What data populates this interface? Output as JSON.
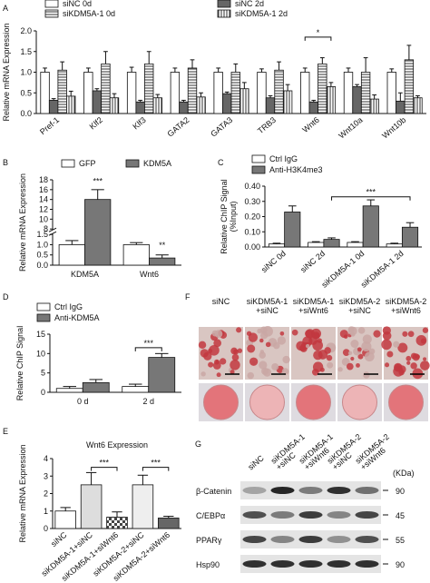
{
  "chart_data": [
    {
      "type": "bar",
      "ylabel": "Relative mRNA Expression",
      "legend": "top",
      "categories": [
        "Pref-1",
        "Klf2",
        "Klf3",
        "GATA2",
        "GATA3",
        "TRB3",
        "Wnt6",
        "Wnt10a",
        "Wnt10b"
      ],
      "series": [
        {
          "name": "siNC 0d",
          "color": "#ffffff",
          "values": [
            1.0,
            1.0,
            1.0,
            1.0,
            1.0,
            1.0,
            1.0,
            1.0,
            1.0
          ],
          "errors": [
            0.1,
            0.1,
            0.12,
            0.1,
            0.1,
            0.08,
            0.1,
            0.1,
            0.08
          ]
        },
        {
          "name": "siNC 2d",
          "color": "#666666",
          "values": [
            0.32,
            0.55,
            0.28,
            0.28,
            0.48,
            0.38,
            0.28,
            0.65,
            0.3
          ],
          "errors": [
            0.04,
            0.05,
            0.04,
            0.04,
            0.04,
            0.05,
            0.04,
            0.05,
            0.2
          ]
        },
        {
          "name": "siKDM5A-1 0d",
          "color": "#ffffff",
          "hatch": "horizontal",
          "values": [
            1.05,
            1.2,
            1.2,
            1.1,
            1.0,
            1.05,
            1.2,
            1.0,
            1.3
          ],
          "errors": [
            0.2,
            0.3,
            0.3,
            0.2,
            0.2,
            0.2,
            0.15,
            0.35,
            0.35
          ]
        },
        {
          "name": "siKDM5A-1 2d",
          "color": "#ffffff",
          "hatch": "vertical",
          "values": [
            0.42,
            0.38,
            0.38,
            0.4,
            0.6,
            0.55,
            0.65,
            0.35,
            0.38
          ],
          "errors": [
            0.12,
            0.1,
            0.08,
            0.1,
            0.15,
            0.15,
            0.1,
            0.1,
            0.05
          ]
        }
      ],
      "ylim": [
        0,
        2.0
      ],
      "yticks": [
        {
          "value": 0,
          "label": "0.0"
        },
        0.5,
        {
          "value": 1,
          "label": "1.0"
        },
        1.5,
        {
          "value": 2,
          "label": "2.0"
        }
      ],
      "xtick_rotation": 40,
      "annotations": [
        "*"
      ]
    },
    {
      "type": "bar",
      "ylabel": "Relative mRNA Expression",
      "legend": "top",
      "categories": [
        "KDM5A",
        "Wnt6"
      ],
      "series": [
        {
          "name": "GFP",
          "color": "#ffffff",
          "values": [
            1.0,
            1.0
          ],
          "errors": [
            0.2,
            0.1
          ]
        },
        {
          "name": "KDM5A",
          "color": "#777777",
          "values": [
            14,
            0.35
          ],
          "errors": [
            2,
            0.15
          ]
        }
      ],
      "ylim": [
        0,
        18
      ],
      "ybreak": [
        1.5,
        8
      ],
      "yticks": [
        {
          "value": 0,
          "label": "0.0"
        },
        0.5,
        {
          "value": 1,
          "label": "1.0"
        },
        1.5,
        8,
        10,
        12,
        14,
        16,
        18
      ],
      "xtick_rotation": 0,
      "annotations": [
        "***",
        "**"
      ]
    },
    {
      "type": "bar",
      "ylabel": [
        "Relative ChIP Signal",
        "(%Input)"
      ],
      "legend": "upper left",
      "categories": [
        "siNC 0d",
        "siNC 2d",
        "siKDM5A-1 0d",
        "siKDM5A-1 2d"
      ],
      "series": [
        {
          "name": "Ctrl IgG",
          "color": "#ffffff",
          "values": [
            0.02,
            0.03,
            0.03,
            0.02
          ],
          "errors": [
            0.005,
            0.005,
            0.005,
            0.005
          ]
        },
        {
          "name": "Anti-H3K4me3",
          "color": "#777777",
          "values": [
            0.23,
            0.05,
            0.27,
            0.13
          ],
          "errors": [
            0.04,
            0.01,
            0.04,
            0.03
          ]
        }
      ],
      "ylim": [
        0,
        0.4
      ],
      "yticks": [
        {
          "value": 0,
          "label": "0.00"
        },
        {
          "value": 0.1,
          "label": "0.10"
        },
        {
          "value": 0.2,
          "label": "0.20"
        },
        {
          "value": 0.3,
          "label": "0.30"
        },
        {
          "value": 0.4,
          "label": "0.40"
        }
      ],
      "xtick_rotation": 40,
      "annotations": [
        "***"
      ]
    },
    {
      "type": "bar",
      "ylabel": "Relative ChIP Signal",
      "legend": "upper left",
      "categories": [
        "0 d",
        "2 d"
      ],
      "series": [
        {
          "name": "Ctrl IgG",
          "color": "#ffffff",
          "values": [
            1.0,
            1.5
          ],
          "errors": [
            0.5,
            0.6
          ]
        },
        {
          "name": "Anti-KDM5A",
          "color": "#777777",
          "values": [
            2.5,
            9
          ],
          "errors": [
            0.8,
            1
          ]
        }
      ],
      "ylim": [
        0,
        15
      ],
      "yticks": [
        0,
        5,
        10,
        15
      ],
      "xtick_rotation": 0,
      "annotations": [
        "***"
      ]
    },
    {
      "type": "bar",
      "title": "Wnt6 Expression",
      "ylabel": "Relative mRNA Expression",
      "categories": [
        "siNC",
        "siKDM5A-1+siNC",
        "siKDM5A-1+siWnt6",
        "siKDM5A-2+siNC",
        "siKDM5A-2+siWnt6"
      ],
      "values": [
        1.0,
        2.5,
        0.65,
        2.5,
        0.6
      ],
      "errors": [
        0.2,
        0.7,
        0.3,
        0.55,
        0.1
      ],
      "colors": [
        "#ffffff",
        "#dddddd",
        "#ffffff",
        "#eeeeee",
        "#666666"
      ],
      "hatches": [
        null,
        null,
        "checker",
        null,
        null
      ],
      "ylim": [
        0,
        4
      ],
      "yticks": [
        0,
        1,
        2,
        3,
        4
      ],
      "xtick_rotation": 40,
      "annotations": [
        "***",
        "***"
      ]
    }
  ],
  "panel_labels": [
    "A",
    "B",
    "C",
    "D",
    "E",
    "F",
    "G"
  ],
  "figure_f": {
    "columns": [
      [
        "siNC"
      ],
      [
        "siKDM5A-1",
        "+siNC"
      ],
      [
        "siKDM5A-1",
        "+siWnt6"
      ],
      [
        "siKDM5A-2",
        "+siNC"
      ],
      [
        "siKDM5A-2",
        "+siWnt6"
      ]
    ]
  },
  "figure_g": {
    "columns": [
      [
        "siNC"
      ],
      [
        "siKDM5A-1",
        "+siNC"
      ],
      [
        "siKDM5A-1",
        "+siWnt6"
      ],
      [
        "siKDM5A-2",
        "+siNC"
      ],
      [
        "siKDM5A-2",
        "+siWnt6"
      ]
    ],
    "unit": "(KDa)",
    "rows": [
      {
        "label": "β-Catenin",
        "marker": 90
      },
      {
        "label": "C/EBPα",
        "marker": 45
      },
      {
        "label": "PPARγ",
        "marker": 55
      },
      {
        "label": "Hsp90",
        "marker": 90
      }
    ]
  }
}
